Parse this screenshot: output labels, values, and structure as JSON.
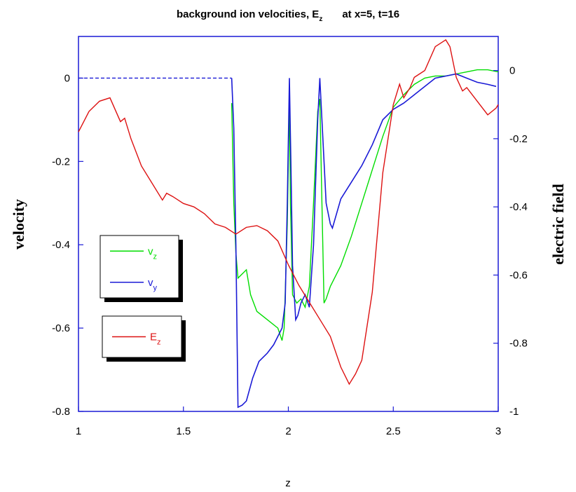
{
  "chart_data": {
    "type": "line",
    "title": {
      "main": "background ion velocities, E",
      "main_sub": "z",
      "suffix": "at x=5, t=16"
    },
    "xlabel": "z",
    "ylabel_left": "velocity",
    "ylabel_right": "electric field",
    "xlim": [
      1,
      3
    ],
    "ylim_left": [
      -0.8,
      0.1
    ],
    "ylim_right": [
      -1,
      0.1
    ],
    "x_ticks": [
      1,
      1.5,
      2,
      2.5,
      3
    ],
    "x_tick_labels": [
      "1",
      "1.5",
      "2",
      "2.5",
      "3"
    ],
    "y_left_ticks": [
      0,
      -0.2,
      -0.4,
      -0.6,
      -0.8
    ],
    "y_left_tick_labels": [
      "0",
      "-0.2",
      "-0.4",
      "-0.6",
      "-0.8"
    ],
    "y_right_ticks": [
      0,
      -0.2,
      -0.4,
      -0.6,
      -0.8,
      -1
    ],
    "y_right_tick_labels": [
      "0",
      "-0.2",
      "-0.4",
      "-0.6",
      "-0.8",
      "-1"
    ],
    "grid": false,
    "legend_vel": [
      {
        "label": "v",
        "sub": "z",
        "color": "#00dd00"
      },
      {
        "label": "v",
        "sub": "y",
        "color": "#1a1ad6"
      }
    ],
    "legend_field": [
      {
        "label": "E",
        "sub": "z",
        "color": "#dd1111"
      }
    ],
    "series": [
      {
        "name": "vz",
        "axis": "left",
        "color": "#00dd00",
        "x": [
          1.73,
          1.74,
          1.75,
          1.76,
          1.78,
          1.8,
          1.82,
          1.85,
          1.9,
          1.95,
          1.97,
          1.98,
          1.995,
          2.005,
          2.01,
          2.02,
          2.04,
          2.06,
          2.08,
          2.1,
          2.12,
          2.14,
          2.15,
          2.16,
          2.17,
          2.18,
          2.2,
          2.25,
          2.3,
          2.35,
          2.4,
          2.45,
          2.5,
          2.55,
          2.6,
          2.65,
          2.7,
          2.75,
          2.8,
          2.85,
          2.9,
          2.95,
          3.0
        ],
        "y": [
          -0.06,
          -0.3,
          -0.42,
          -0.48,
          -0.47,
          -0.46,
          -0.52,
          -0.56,
          -0.58,
          -0.6,
          -0.63,
          -0.6,
          -0.35,
          -0.05,
          -0.3,
          -0.52,
          -0.54,
          -0.53,
          -0.55,
          -0.5,
          -0.3,
          -0.08,
          -0.05,
          -0.3,
          -0.54,
          -0.53,
          -0.5,
          -0.45,
          -0.38,
          -0.3,
          -0.22,
          -0.14,
          -0.07,
          -0.04,
          -0.015,
          0.0,
          0.005,
          0.005,
          0.01,
          0.015,
          0.02,
          0.02,
          0.015
        ]
      },
      {
        "name": "vy",
        "axis": "left",
        "color": "#1a1ad6",
        "x": [
          1.0,
          1.73,
          1.74,
          1.75,
          1.76,
          1.78,
          1.8,
          1.83,
          1.86,
          1.9,
          1.93,
          1.95,
          1.97,
          1.985,
          1.995,
          2.005,
          2.012,
          2.02,
          2.035,
          2.045,
          2.06,
          2.08,
          2.1,
          2.12,
          2.14,
          2.15,
          2.16,
          2.18,
          2.2,
          2.21,
          2.25,
          2.3,
          2.35,
          2.4,
          2.45,
          2.5,
          2.55,
          2.6,
          2.65,
          2.7,
          2.75,
          2.8,
          2.85,
          2.9,
          2.95,
          2.99
        ],
        "y": [
          0.0,
          0.0,
          -0.12,
          -0.4,
          -0.79,
          -0.785,
          -0.775,
          -0.72,
          -0.68,
          -0.66,
          -0.64,
          -0.62,
          -0.6,
          -0.54,
          -0.3,
          0.0,
          -0.2,
          -0.45,
          -0.58,
          -0.57,
          -0.54,
          -0.52,
          -0.55,
          -0.4,
          -0.1,
          0.0,
          -0.1,
          -0.3,
          -0.35,
          -0.36,
          -0.29,
          -0.25,
          -0.21,
          -0.16,
          -0.1,
          -0.075,
          -0.06,
          -0.04,
          -0.02,
          0.0,
          0.005,
          0.01,
          0.0,
          -0.01,
          -0.015,
          -0.02
        ]
      },
      {
        "name": "Ez",
        "axis": "right",
        "color": "#dd1111",
        "x": [
          1.0,
          1.05,
          1.1,
          1.15,
          1.2,
          1.22,
          1.25,
          1.3,
          1.35,
          1.4,
          1.42,
          1.45,
          1.5,
          1.55,
          1.6,
          1.65,
          1.7,
          1.75,
          1.8,
          1.85,
          1.9,
          1.95,
          2.0,
          2.05,
          2.1,
          2.15,
          2.2,
          2.25,
          2.29,
          2.32,
          2.35,
          2.4,
          2.45,
          2.5,
          2.53,
          2.55,
          2.58,
          2.6,
          2.65,
          2.7,
          2.75,
          2.77,
          2.8,
          2.83,
          2.85,
          2.9,
          2.95,
          2.99,
          3.0
        ],
        "y": [
          -0.18,
          -0.12,
          -0.09,
          -0.08,
          -0.15,
          -0.14,
          -0.2,
          -0.28,
          -0.33,
          -0.38,
          -0.36,
          -0.37,
          -0.39,
          -0.4,
          -0.42,
          -0.45,
          -0.46,
          -0.48,
          -0.46,
          -0.455,
          -0.47,
          -0.5,
          -0.57,
          -0.63,
          -0.68,
          -0.73,
          -0.78,
          -0.87,
          -0.92,
          -0.89,
          -0.85,
          -0.65,
          -0.3,
          -0.1,
          -0.04,
          -0.08,
          -0.05,
          -0.02,
          0.0,
          0.07,
          0.09,
          0.07,
          -0.02,
          -0.06,
          -0.05,
          -0.09,
          -0.13,
          -0.11,
          -0.1
        ]
      }
    ]
  }
}
